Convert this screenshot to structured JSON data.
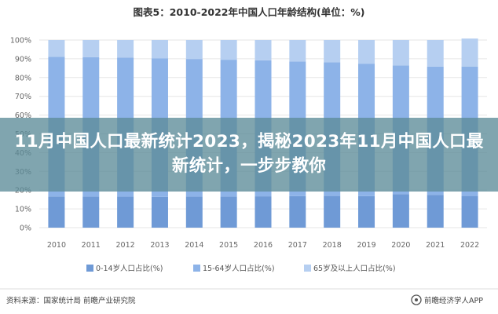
{
  "headline": "11月中国人口最新统计2023，揭秘2023年11月中国人口最新统计，一步步教你",
  "source": "资料来源：国家统计局 前瞻产业研究院",
  "brand": "前瞻经济学人APP",
  "colors": {
    "series_0_14": "#6f9ad6",
    "series_15_64": "#8db3e8",
    "series_65plus": "#b6cff1",
    "overlay": "#5c8c98"
  },
  "chart_data": {
    "type": "bar",
    "stacked": true,
    "title": "图表5：2010-2022年中国人口年龄结构(单位：%)",
    "categories": [
      "2010",
      "2011",
      "2012",
      "2013",
      "2014",
      "2015",
      "2016",
      "2017",
      "2018",
      "2019",
      "2020",
      "2021",
      "2022"
    ],
    "series": [
      {
        "name": "0-14岁人口占比(%)",
        "values": [
          16.6,
          16.5,
          16.5,
          16.4,
          16.5,
          16.5,
          16.7,
          16.8,
          16.9,
          16.8,
          17.9,
          17.5,
          16.9
        ]
      },
      {
        "name": "15-64岁人口占比(%)",
        "values": [
          74.5,
          74.4,
          74.1,
          73.9,
          73.4,
          73.0,
          72.5,
          71.8,
          71.2,
          70.6,
          68.6,
          68.3,
          69.0
        ]
      },
      {
        "name": "65岁及以上人口占比(%)",
        "values": [
          8.9,
          9.1,
          9.4,
          9.7,
          10.1,
          10.5,
          10.8,
          11.4,
          11.9,
          12.6,
          13.5,
          14.2,
          14.9
        ]
      }
    ],
    "ylim": [
      0,
      100
    ],
    "yticks": [
      "0%",
      "10%",
      "20%",
      "30%",
      "40%",
      "50%",
      "60%",
      "70%",
      "80%",
      "90%",
      "100%"
    ],
    "xlabel": "",
    "ylabel": "",
    "legend": "bottom",
    "grid": true
  }
}
